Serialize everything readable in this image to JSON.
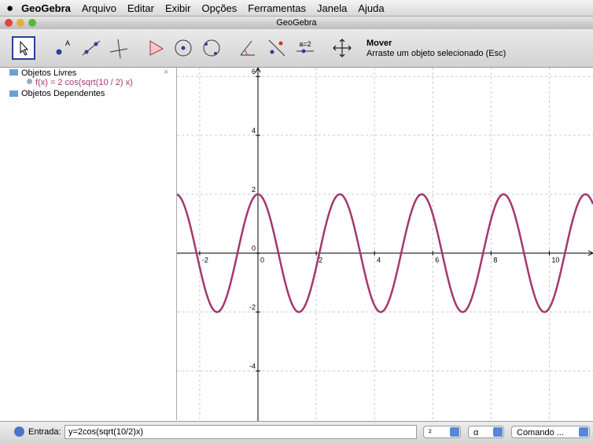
{
  "menu": {
    "app": "GeoGebra",
    "items": [
      "Arquivo",
      "Editar",
      "Exibir",
      "Opções",
      "Ferramentas",
      "Janela",
      "Ajuda"
    ]
  },
  "window": {
    "title": "GeoGebra"
  },
  "toolbar": {
    "icon_text": "a=2",
    "tool_name": "Mover",
    "tool_help": "Arraste um objeto selecionado (Esc)"
  },
  "algebra": {
    "free_folder": "Objetos Livres",
    "free_items": [
      "f(x) = 2 cos(sqrt(10 / 2) x)"
    ],
    "dependent_folder": "Objetos Dependentes"
  },
  "graphics": {
    "xlim": [
      -2.78,
      11.5
    ],
    "ylim": [
      -5.7,
      6.3
    ],
    "xticks": [
      -2,
      0,
      2,
      4,
      6,
      8,
      10
    ],
    "yticks": [
      -4,
      -2,
      0,
      2,
      4,
      6
    ],
    "grid": true,
    "color": "#a3386f"
  },
  "input": {
    "label": "Entrada:",
    "value": "y=2cos(sqrt(10/2)x)",
    "symbol1": "²",
    "symbol2": "α",
    "command": "Comando ..."
  }
}
